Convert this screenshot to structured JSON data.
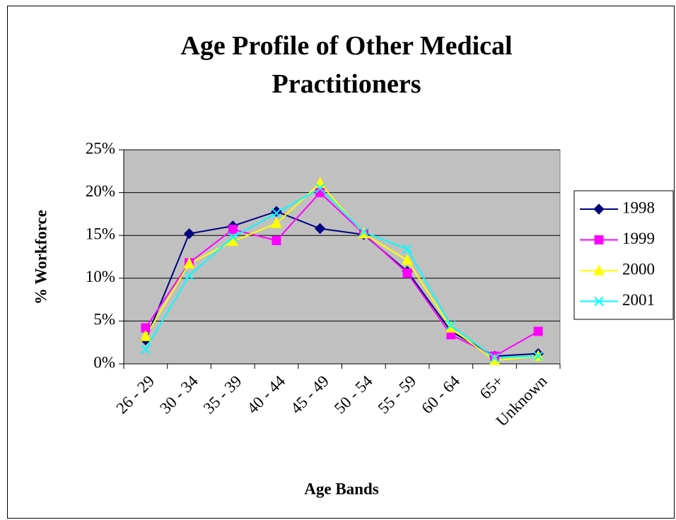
{
  "chart_data": {
    "type": "line",
    "title": "Age Profile of Other Medical Practitioners",
    "x_label": "Age Bands",
    "y_label": "% Workforce",
    "categories": [
      "26 - 29",
      "30 - 34",
      "35 - 39",
      "40 - 44",
      "45 - 49",
      "50 - 54",
      "55 - 59",
      "60 - 64",
      "65+",
      "Unknown"
    ],
    "series": [
      {
        "name": "1998",
        "color": "#000080",
        "marker": "diamond",
        "values": [
          2.8,
          15.2,
          16.1,
          17.8,
          15.8,
          15.1,
          10.8,
          3.8,
          0.9,
          1.2
        ]
      },
      {
        "name": "1999",
        "color": "#ff00ff",
        "marker": "square",
        "values": [
          4.2,
          11.8,
          15.7,
          14.4,
          20.0,
          15.2,
          10.6,
          3.4,
          0.9,
          3.8
        ]
      },
      {
        "name": "2000",
        "color": "#ffff00",
        "marker": "triangle",
        "values": [
          3.2,
          11.7,
          14.3,
          16.4,
          21.1,
          15.2,
          12.1,
          4.2,
          0.4,
          0.9
        ]
      },
      {
        "name": "2001",
        "color": "#00ffff",
        "marker": "x",
        "values": [
          1.7,
          10.3,
          14.8,
          17.6,
          20.5,
          15.4,
          13.4,
          4.5,
          0.7,
          0.9
        ]
      }
    ],
    "ylim": [
      0,
      25
    ],
    "yticks": [
      {
        "value": 0,
        "label": "0%"
      },
      {
        "value": 5,
        "label": "5%"
      },
      {
        "value": 10,
        "label": "10%"
      },
      {
        "value": 15,
        "label": "15%"
      },
      {
        "value": 20,
        "label": "20%"
      },
      {
        "value": 25,
        "label": "25%"
      }
    ],
    "grid": true,
    "legend": "right",
    "plot_background": "#c0c0c0"
  }
}
